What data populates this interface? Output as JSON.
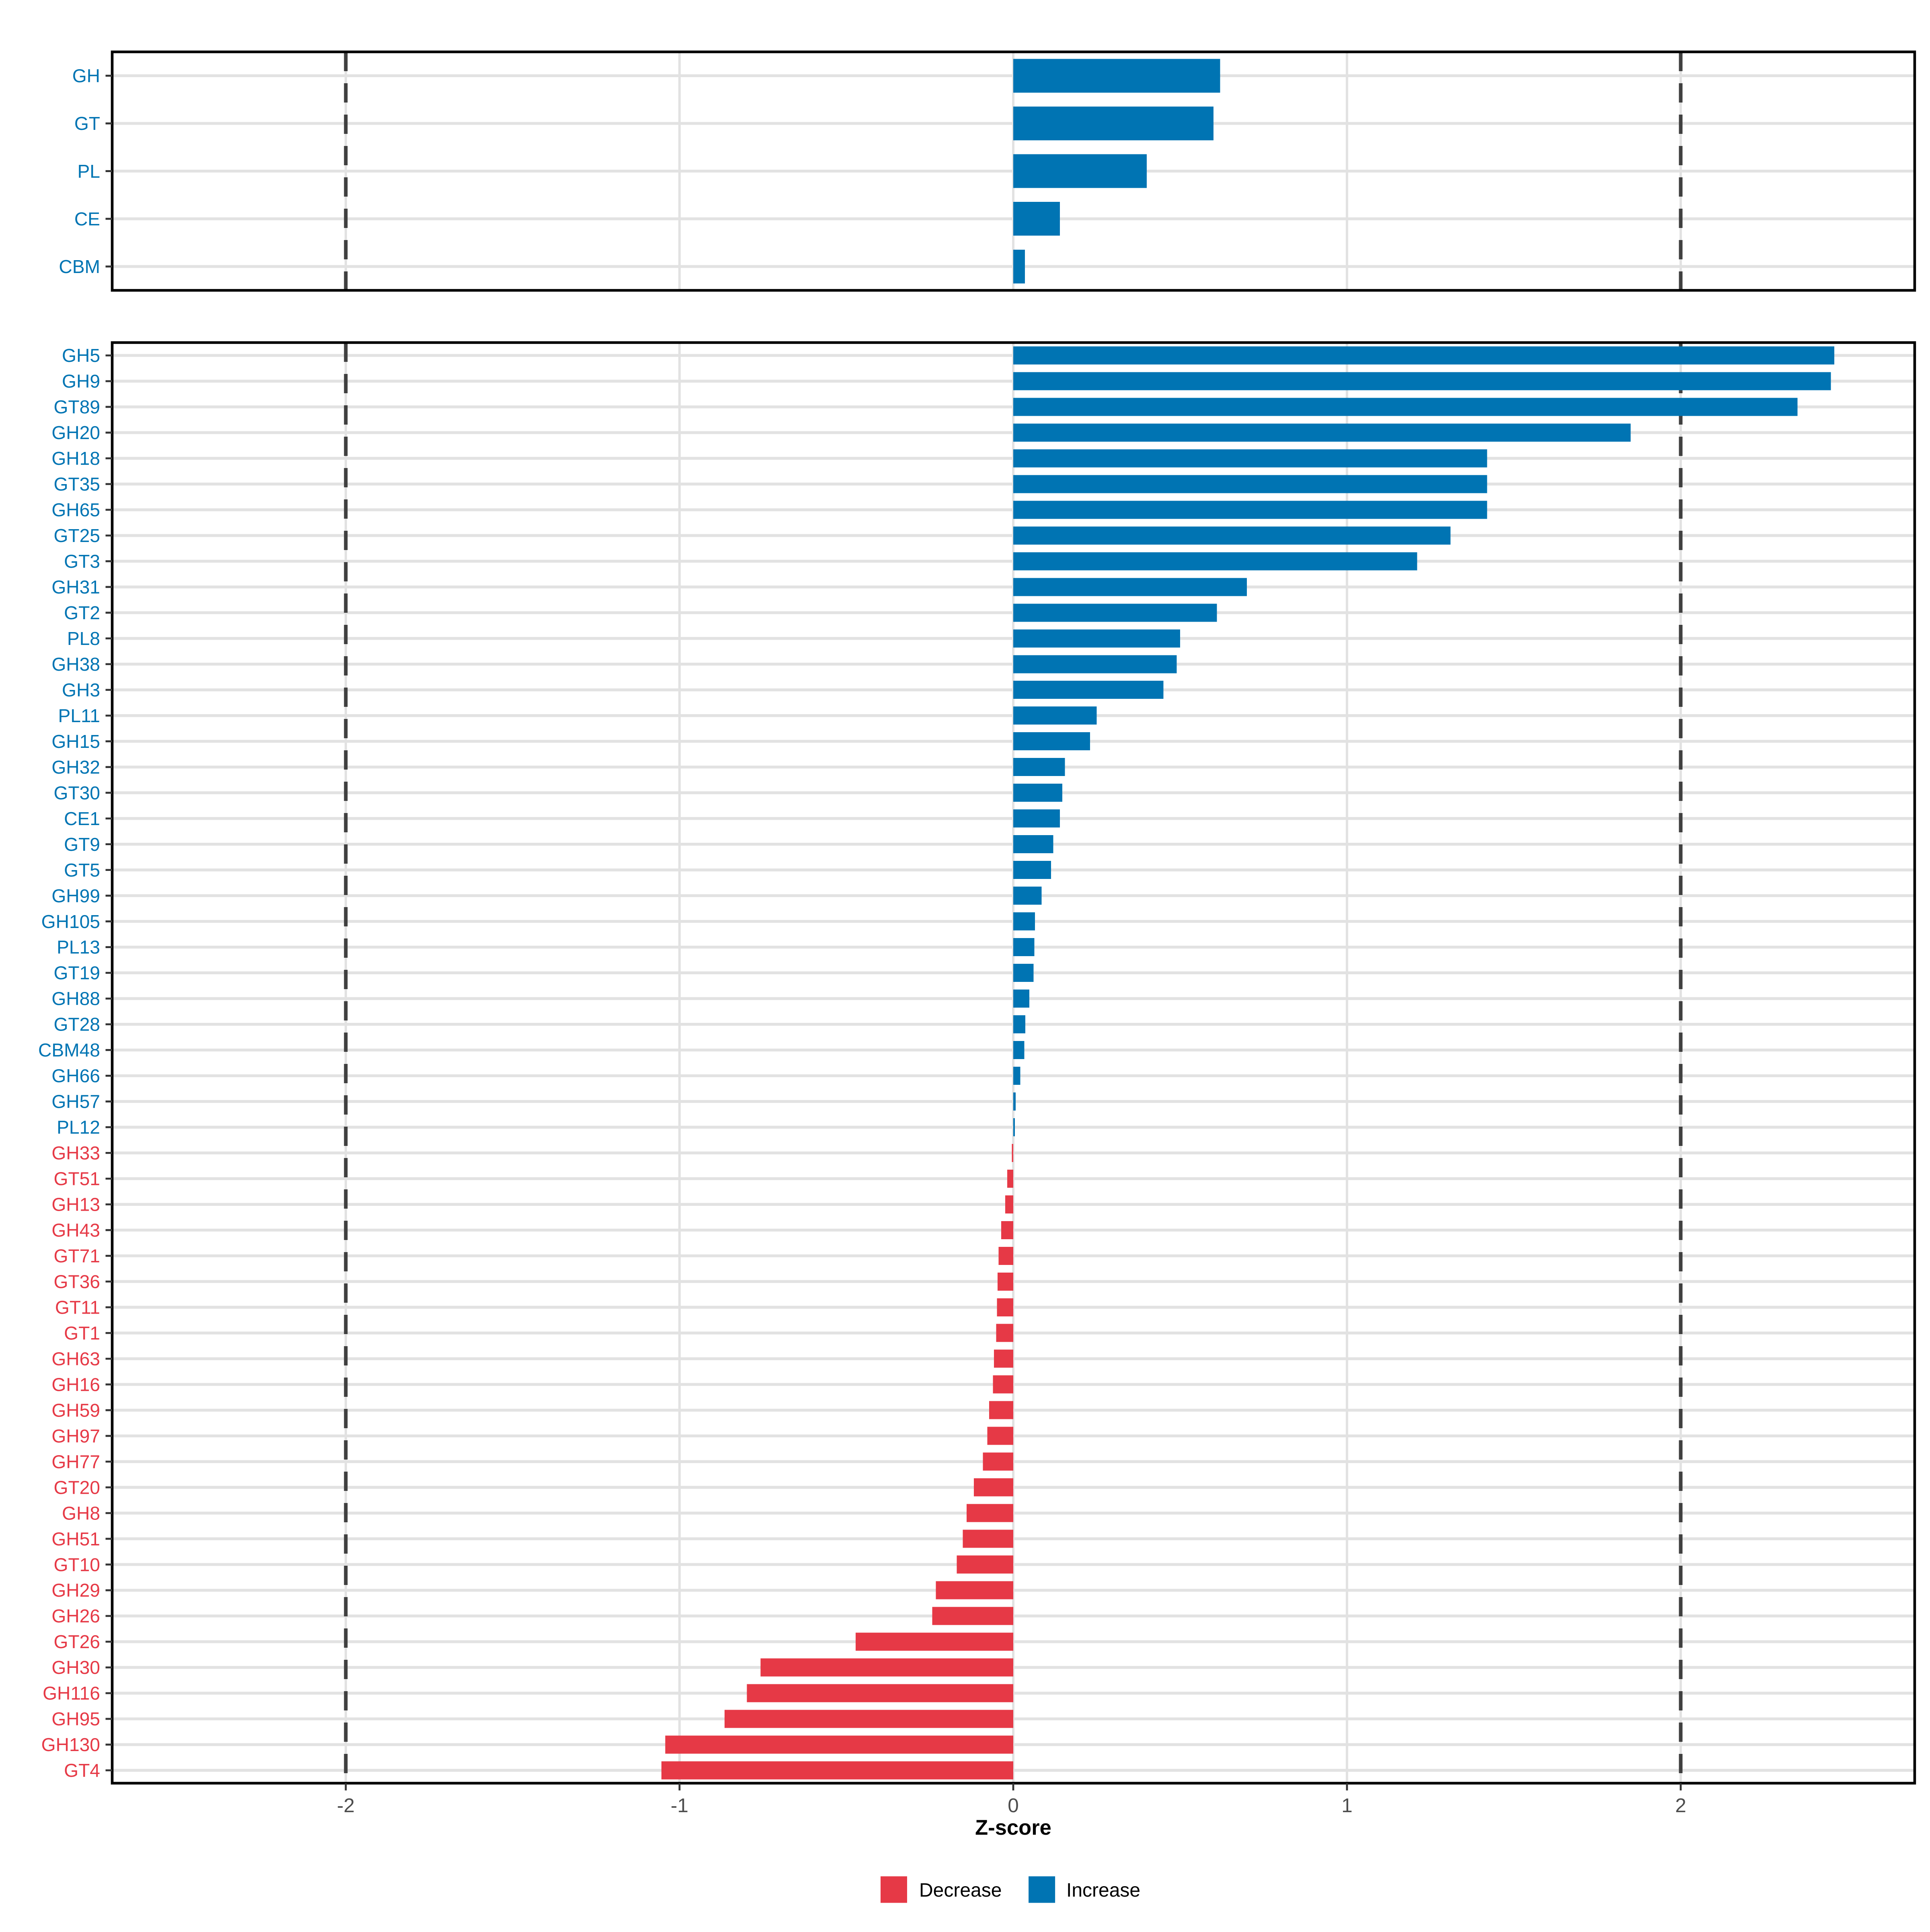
{
  "figure": {
    "description": "Two stacked horizontal bar charts of CAZyme z-scores: top panel shows enzyme classes, bottom panel shows enzyme families, colored by direction of change"
  },
  "axis": {
    "xlabel": "Z-score",
    "tick_values": [
      -2,
      -1,
      0,
      1,
      2
    ],
    "tick_labels": [
      "-2",
      "-1",
      "0",
      "1",
      "2"
    ],
    "xlim": [
      -2.7,
      2.7
    ],
    "dashed_reference_x": [
      -2,
      2
    ]
  },
  "colors": {
    "increase": "#0074B3",
    "decrease": "#E63946",
    "grid": "#E2E2E2",
    "dashed_line": "#404040",
    "axis_text": "#4D4D4D",
    "tick_mark": "#333333",
    "border": "#000000",
    "background": "#ffffff"
  },
  "legend": {
    "items": [
      {
        "label": "Decrease",
        "color": "#E63946"
      },
      {
        "label": "Increase",
        "color": "#0074B3"
      }
    ]
  },
  "chart_data": [
    {
      "type": "bar",
      "orientation": "horizontal",
      "panel": "top",
      "title": "",
      "xlabel": "Z-score",
      "xlim": [
        -2.7,
        2.7
      ],
      "grid": true,
      "reference_lines_dashed_x": [
        -2,
        2
      ],
      "categories": [
        "GH",
        "GT",
        "PL",
        "CE",
        "CBM"
      ],
      "values": [
        0.62,
        0.6,
        0.4,
        0.14,
        0.035
      ],
      "groups": [
        "Increase",
        "Increase",
        "Increase",
        "Increase",
        "Increase"
      ]
    },
    {
      "type": "bar",
      "orientation": "horizontal",
      "panel": "bottom",
      "title": "",
      "xlabel": "Z-score",
      "xlim": [
        -2.7,
        2.7
      ],
      "grid": true,
      "reference_lines_dashed_x": [
        -2,
        2
      ],
      "categories": [
        "GH5",
        "GH9",
        "GT89",
        "GH20",
        "GH18",
        "GT35",
        "GH65",
        "GT25",
        "GT3",
        "GH31",
        "GT2",
        "PL8",
        "GH38",
        "GH3",
        "PL11",
        "GH15",
        "GH32",
        "GT30",
        "CE1",
        "GT9",
        "GT5",
        "GH99",
        "GH105",
        "PL13",
        "GT19",
        "GH88",
        "GT28",
        "CBM48",
        "GH66",
        "GH57",
        "PL12",
        "GH33",
        "GT51",
        "GH13",
        "GH43",
        "GT71",
        "GT36",
        "GT11",
        "GT1",
        "GH63",
        "GH16",
        "GH59",
        "GH97",
        "GH77",
        "GT20",
        "GH8",
        "GH51",
        "GT10",
        "GH29",
        "GH26",
        "GT26",
        "GH30",
        "GH116",
        "GH95",
        "GH130",
        "GT4"
      ],
      "values": [
        2.46,
        2.45,
        2.35,
        1.85,
        1.42,
        1.42,
        1.42,
        1.31,
        1.21,
        0.7,
        0.61,
        0.5,
        0.49,
        0.45,
        0.25,
        0.23,
        0.155,
        0.147,
        0.14,
        0.12,
        0.113,
        0.085,
        0.065,
        0.063,
        0.061,
        0.048,
        0.036,
        0.033,
        0.021,
        0.007,
        0.005,
        -0.004,
        -0.018,
        -0.024,
        -0.036,
        -0.044,
        -0.047,
        -0.049,
        -0.051,
        -0.058,
        -0.061,
        -0.072,
        -0.078,
        -0.091,
        -0.118,
        -0.14,
        -0.151,
        -0.169,
        -0.232,
        -0.243,
        -0.472,
        -0.757,
        -0.798,
        -0.865,
        -1.043,
        -1.054
      ],
      "groups": [
        "Increase",
        "Increase",
        "Increase",
        "Increase",
        "Increase",
        "Increase",
        "Increase",
        "Increase",
        "Increase",
        "Increase",
        "Increase",
        "Increase",
        "Increase",
        "Increase",
        "Increase",
        "Increase",
        "Increase",
        "Increase",
        "Increase",
        "Increase",
        "Increase",
        "Increase",
        "Increase",
        "Increase",
        "Increase",
        "Increase",
        "Increase",
        "Increase",
        "Increase",
        "Increase",
        "Increase",
        "Decrease",
        "Decrease",
        "Decrease",
        "Decrease",
        "Decrease",
        "Decrease",
        "Decrease",
        "Decrease",
        "Decrease",
        "Decrease",
        "Decrease",
        "Decrease",
        "Decrease",
        "Decrease",
        "Decrease",
        "Decrease",
        "Decrease",
        "Decrease",
        "Decrease",
        "Decrease",
        "Decrease",
        "Decrease",
        "Decrease",
        "Decrease",
        "Decrease"
      ]
    }
  ]
}
